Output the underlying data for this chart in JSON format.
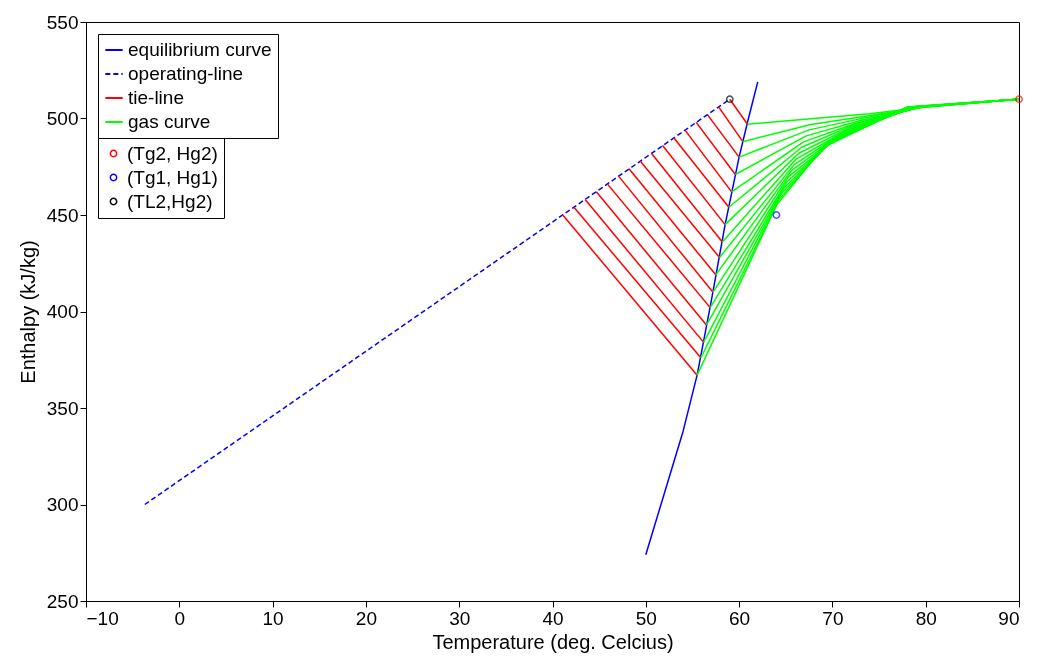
{
  "chart_data": {
    "type": "line",
    "xlabel": "Temperature (deg. Celcius)",
    "ylabel": "Enthalpy (kJ/kg)",
    "xlim": [
      -10,
      90
    ],
    "ylim": [
      250,
      550
    ],
    "xticks": [
      -10,
      0,
      10,
      20,
      30,
      40,
      50,
      60,
      70,
      80,
      90
    ],
    "yticks": [
      250,
      300,
      350,
      400,
      450,
      500,
      550
    ],
    "grid": false,
    "legend": "top left",
    "series": [
      {
        "name": "equilibrium curve",
        "type": "line",
        "line_style": "solid",
        "color": "#0000ff",
        "x": [
          50,
          52,
          54,
          55.5,
          57,
          58.5,
          60,
          61,
          62
        ],
        "values": [
          274,
          306,
          338,
          367,
          405,
          445,
          480,
          500,
          519
        ]
      },
      {
        "name": "operating-line",
        "type": "line",
        "line_style": "dashed",
        "color": "#0000ff",
        "x": [
          -3.7,
          59
        ],
        "values": [
          300,
          510
        ]
      },
      {
        "name": "tie-line",
        "type": "line",
        "line_style": "solid",
        "color": "#ff0000",
        "x": [
          41.1,
          55.5,
          null,
          42.3,
          55.9,
          null,
          43.5,
          56.2,
          null,
          44.7,
          56.5,
          null,
          45.9,
          56.9,
          null,
          47.1,
          57.2,
          null,
          48.2,
          57.5,
          null,
          49.4,
          57.9,
          null,
          50.6,
          58.2,
          null,
          51.8,
          58.5,
          null,
          53,
          58.9,
          null,
          54.2,
          59.2,
          null,
          55.4,
          59.6,
          null,
          56.6,
          60,
          null,
          57.8,
          60.4,
          null,
          59,
          60.9
        ],
        "values": [
          450,
          367,
          null,
          454,
          376,
          null,
          458,
          384,
          null,
          462,
          393,
          null,
          466,
          402,
          null,
          470,
          410,
          null,
          474,
          419,
          null,
          478,
          428,
          null,
          482,
          436,
          null,
          486,
          445,
          null,
          490,
          454,
          null,
          494,
          462,
          null,
          498,
          471,
          null,
          502,
          480,
          null,
          506,
          488,
          null,
          510,
          497
        ]
      },
      {
        "name": "gas curve",
        "type": "line",
        "line_style": "solid",
        "color": "#00ff00",
        "x": [
          55.5,
          64,
          69,
          78,
          90,
          null,
          55.9,
          64.3,
          69.3,
          78.1,
          90,
          null,
          56.2,
          64.5,
          69.7,
          78.3,
          90,
          null,
          56.5,
          64.8,
          70,
          78.4,
          90,
          null,
          56.9,
          65.1,
          70.3,
          78.5,
          90,
          null,
          57.2,
          65.3,
          70.7,
          78.7,
          90,
          null,
          57.5,
          65.6,
          71,
          78.8,
          90,
          null,
          57.9,
          65.9,
          71.3,
          78.9,
          90,
          null,
          58.2,
          66.1,
          71.7,
          79.1,
          90,
          null,
          58.5,
          66.4,
          72,
          79.2,
          90,
          null,
          58.9,
          66.7,
          72.3,
          79.3,
          90,
          null,
          59.2,
          66.9,
          72.7,
          79.5,
          90,
          null,
          59.6,
          67.2,
          73,
          79.6,
          90,
          null,
          60,
          67.5,
          73.3,
          79.7,
          90,
          null,
          60.4,
          67.7,
          73.7,
          79.9,
          90,
          null,
          60.9,
          68,
          74,
          80,
          90
        ],
        "values": [
          367,
          455,
          485,
          506,
          510,
          null,
          376,
          458.1,
          486.2,
          506,
          510,
          null,
          384,
          460.9,
          487.3,
          506,
          510,
          null,
          393,
          464,
          488.5,
          506,
          510,
          null,
          402,
          467.1,
          489.7,
          506,
          510,
          null,
          410,
          469.9,
          490.8,
          506,
          510,
          null,
          419,
          473,
          492,
          506,
          510,
          null,
          428,
          476.1,
          493.2,
          506,
          510,
          null,
          436,
          478.9,
          494.3,
          506,
          510,
          null,
          445,
          482,
          495.5,
          506,
          510,
          null,
          454,
          485.1,
          496.7,
          506,
          510,
          null,
          462,
          487.9,
          497.8,
          506,
          510,
          null,
          471,
          491,
          499,
          506,
          510,
          null,
          480,
          494.1,
          500.2,
          506,
          510,
          null,
          488,
          496.9,
          501.3,
          506,
          510,
          null,
          497,
          500,
          502.5,
          506,
          510
        ]
      },
      {
        "name": "(Tg2, Hg2)",
        "type": "scatter",
        "marker": "circle",
        "color": "#ff0000",
        "x": [
          90
        ],
        "values": [
          510
        ]
      },
      {
        "name": "(Tg1, Hg1)",
        "type": "scatter",
        "marker": "circle",
        "color": "#0000ff",
        "x": [
          64
        ],
        "values": [
          450
        ]
      },
      {
        "name": "(TL2,Hg2)",
        "type": "scatter",
        "marker": "circle",
        "color": "#000000",
        "x": [
          59
        ],
        "values": [
          510
        ]
      }
    ]
  }
}
